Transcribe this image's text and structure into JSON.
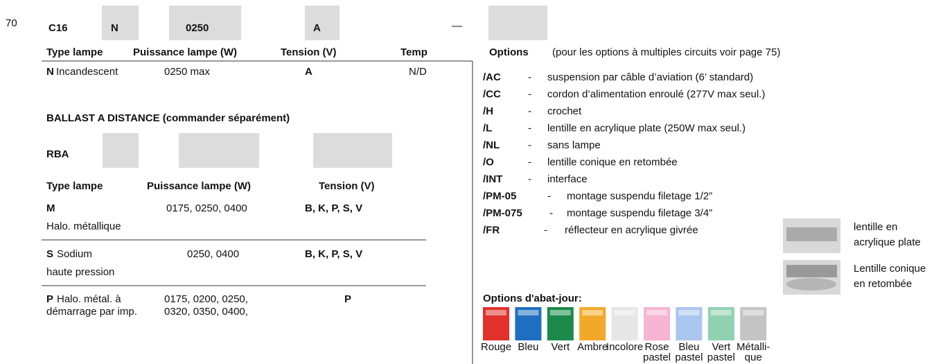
{
  "page_number": "70",
  "code": {
    "prefix": "C16",
    "lamp": "N",
    "watts": "0250",
    "voltage": "A",
    "dash": "—"
  },
  "headers": [
    "Type lampe",
    "Puissance lampe (W)",
    "Tension (V)",
    "Temp"
  ],
  "row": {
    "code": "N",
    "desc": "Incandescent",
    "watts": "0250 max",
    "voltage": "A",
    "temp": "N/D"
  },
  "ballast": {
    "title": "BALLAST A DISTANCE (commander séparément)",
    "code": "RBA",
    "headers": [
      "Type lampe",
      "Puissance lampe (W)",
      "Tension (V)"
    ],
    "rows": [
      {
        "code": "M",
        "desc": [
          "",
          "Halo. métallique"
        ],
        "watts": [
          "0175, 0250, 0400"
        ],
        "voltage": "B, K, P, S, V"
      },
      {
        "code": "S",
        "desc": [
          "Sodium",
          "haute pression"
        ],
        "watts": [
          "0250, 0400"
        ],
        "voltage": "B, K, P, S, V"
      },
      {
        "code": "P",
        "desc": [
          "Halo. métal. à",
          "démarrage par imp."
        ],
        "watts": [
          "0175, 0200, 0250,",
          "0320, 0350, 0400,"
        ],
        "voltage": "P"
      }
    ]
  },
  "options": {
    "title": "Options",
    "note": "(pour les options à multiples circuits voir page 75)",
    "items": [
      {
        "code": "/AC",
        "dash": "-",
        "text": "suspension par câble d’aviation (6’ standard)"
      },
      {
        "code": "/CC",
        "dash": "-",
        "text": "cordon d’alimentation enroulé (277V max seul.)"
      },
      {
        "code": "/H",
        "dash": "-",
        "text": "crochet"
      },
      {
        "code": "/L",
        "dash": "-",
        "text": "lentille en acrylique plate (250W max seul.)"
      },
      {
        "code": "/NL",
        "dash": "-",
        "text": "sans lampe"
      },
      {
        "code": "/O",
        "dash": "-",
        "text": "lentille conique en retombée"
      },
      {
        "code": "/INT",
        "dash": "-",
        "text": "interface"
      },
      {
        "code": "/PM-05",
        "dash": "-",
        "text": "montage suspendu filetage 1/2”"
      },
      {
        "code": "/PM-075",
        "dash": "-",
        "text": "montage suspendu filetage 3/4”"
      },
      {
        "code": "/FR",
        "dash": "-",
        "text": "réflecteur en acrylique givrée"
      }
    ],
    "lenses": [
      [
        "lentille en",
        "acrylique plate"
      ],
      [
        "Lentille conique",
        "en retombée"
      ]
    ]
  },
  "shades": {
    "title": "Options d'abat-jour:",
    "items": [
      {
        "label": [
          "Rouge"
        ],
        "color": "#e0312a"
      },
      {
        "label": [
          "Bleu"
        ],
        "color": "#1f6fc0"
      },
      {
        "label": [
          "Vert"
        ],
        "color": "#1b8a4a"
      },
      {
        "label": [
          "Ambre"
        ],
        "color": "#f2a92a"
      },
      {
        "label": [
          "Incolore"
        ],
        "color": "#e6e6e6"
      },
      {
        "label": [
          "Rose",
          "pastel"
        ],
        "color": "#f6b5d2"
      },
      {
        "label": [
          "Bleu",
          "pastel"
        ],
        "color": "#a9c6ee"
      },
      {
        "label": [
          "Vert",
          "pastel"
        ],
        "color": "#8fd1b0"
      },
      {
        "label": [
          "Métalli-",
          "que"
        ],
        "color": "#c4c4c4"
      }
    ]
  }
}
